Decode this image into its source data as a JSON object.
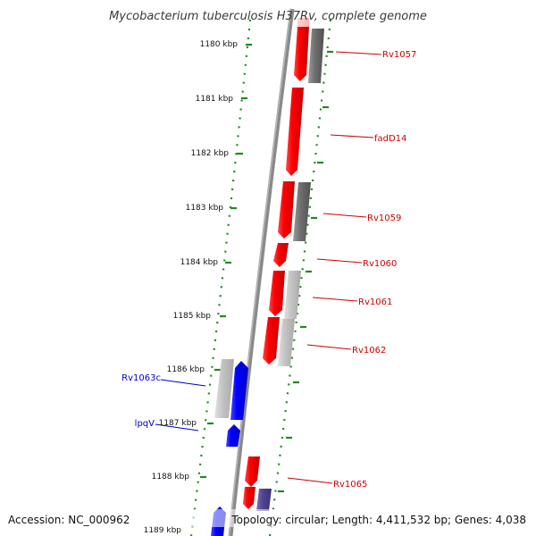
{
  "title": "Mycobacterium tuberculosis H37Rv, complete genome",
  "footer": {
    "accession": "Accession: NC_000962",
    "summary": "Topology: circular; Length: 4,411,532 bp; Genes: 4,038"
  },
  "colors": {
    "forward_cds": "#ff0000",
    "reverse_cds": "#0000ff",
    "forward_label": "#cc0000",
    "reverse_label": "#0000cc",
    "gray_feature": "#777777",
    "light_gray_feature": "#c4c4c4",
    "purple_feature": "#51468f",
    "backbone": "#8a8a8a",
    "ruler_dots": "#1e8a1e"
  },
  "ruler": {
    "unit": "kbp",
    "marks": [
      {
        "kbp": 1180,
        "label": "1180 kbp"
      },
      {
        "kbp": 1181,
        "label": "1181 kbp"
      },
      {
        "kbp": 1182,
        "label": "1182 kbp"
      },
      {
        "kbp": 1183,
        "label": "1183 kbp"
      },
      {
        "kbp": 1184,
        "label": "1184 kbp"
      },
      {
        "kbp": 1185,
        "label": "1185 kbp"
      },
      {
        "kbp": 1186,
        "label": "1186 kbp"
      },
      {
        "kbp": 1187,
        "label": "1187 kbp"
      },
      {
        "kbp": 1188,
        "label": "1188 kbp"
      },
      {
        "kbp": 1189,
        "label": "1189 kbp"
      }
    ]
  },
  "genes": [
    {
      "name": "Rv1057",
      "strand": "forward"
    },
    {
      "name": "fadD14",
      "strand": "forward"
    },
    {
      "name": "Rv1059",
      "strand": "forward"
    },
    {
      "name": "Rv1060",
      "strand": "forward"
    },
    {
      "name": "Rv1061",
      "strand": "forward"
    },
    {
      "name": "Rv1062",
      "strand": "forward"
    },
    {
      "name": "Rv1063c",
      "strand": "reverse"
    },
    {
      "name": "lpqV",
      "strand": "reverse"
    },
    {
      "name": "Rv1065",
      "strand": "forward"
    }
  ]
}
